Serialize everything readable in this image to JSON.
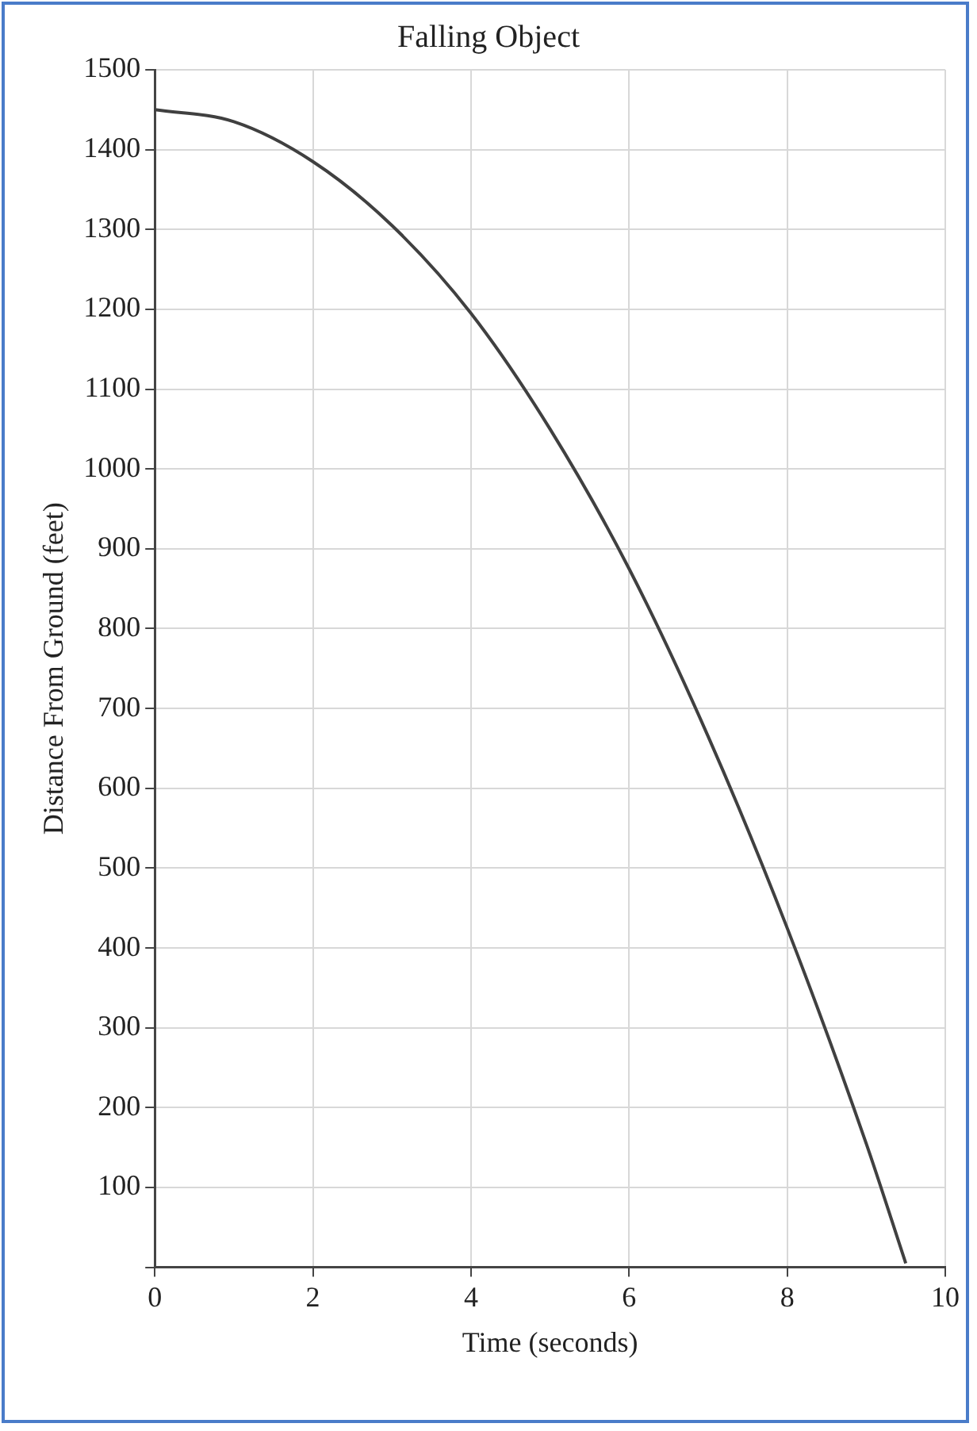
{
  "chart_data": {
    "type": "line",
    "title": "Falling Object",
    "xlabel": "Time (seconds)",
    "ylabel": "Distance From Ground (feet)",
    "x": [
      0,
      1,
      2,
      3,
      4,
      5,
      6,
      7,
      8,
      9,
      9.5
    ],
    "series": [
      {
        "color": "#404040",
        "values": [
          1450,
          1435,
          1385,
          1305,
          1195,
          1050,
          875,
          665,
          425,
          155,
          5
        ]
      }
    ],
    "xlim": [
      0,
      10
    ],
    "xticks": [
      0,
      2,
      4,
      6,
      8,
      10
    ],
    "ylim": [
      0,
      1500
    ],
    "yticks": [
      {
        "value": 0,
        "label": null
      },
      100,
      200,
      300,
      400,
      500,
      600,
      700,
      800,
      900,
      1000,
      1100,
      1200,
      1300,
      1400,
      1500
    ],
    "grid": true,
    "legend": false,
    "marker": "none",
    "line_style": "solid"
  }
}
